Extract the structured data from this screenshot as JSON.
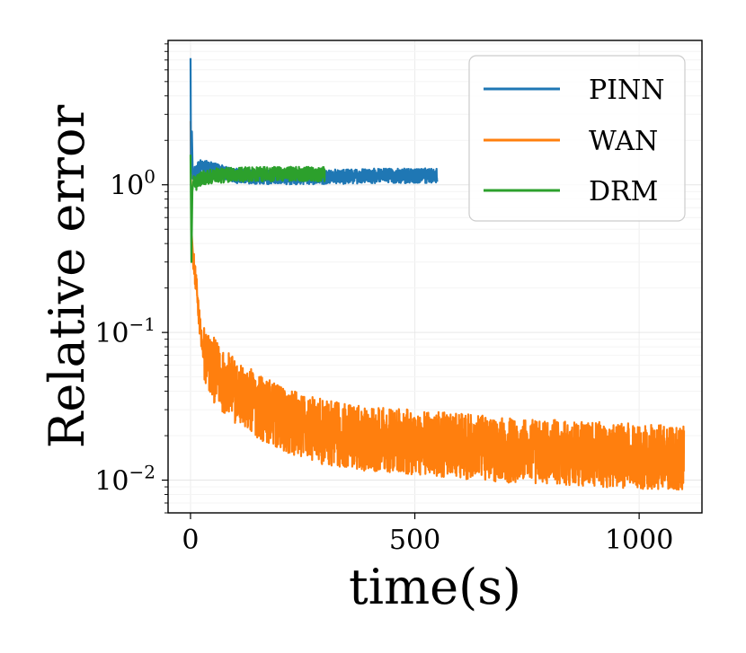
{
  "chart_data": {
    "type": "line",
    "title": "",
    "xlabel": "time(s)",
    "ylabel": "Relative error",
    "xlim": [
      -50,
      1140
    ],
    "ylim": [
      0.006,
      9.5
    ],
    "yscale": "log",
    "grid": true,
    "legend_position": "top-right",
    "x_ticks": [
      0,
      500,
      1000
    ],
    "x_tick_labels": [
      "0",
      "500",
      "1000"
    ],
    "y_ticks": [
      0.01,
      0.1,
      1
    ],
    "y_tick_labels": [
      {
        "base": "10",
        "exp": "−2"
      },
      {
        "base": "10",
        "exp": "−1"
      },
      {
        "base": "10",
        "exp": "0"
      }
    ],
    "series": [
      {
        "name": "PINN",
        "color": "#1f77b4",
        "x_end": 550,
        "anchors": [
          [
            0,
            7.2
          ],
          [
            1,
            1.2
          ],
          [
            3,
            2.3
          ],
          [
            5,
            1.1
          ],
          [
            10,
            1.2
          ],
          [
            20,
            1.3
          ],
          [
            30,
            1.35
          ],
          [
            40,
            1.3
          ],
          [
            60,
            1.25
          ],
          [
            100,
            1.15
          ],
          [
            150,
            1.13
          ],
          [
            200,
            1.13
          ],
          [
            300,
            1.13
          ],
          [
            400,
            1.15
          ],
          [
            550,
            1.15
          ]
        ],
        "noise": 0.05
      },
      {
        "name": "WAN",
        "color": "#ff7f0e",
        "x_end": 1100,
        "anchors": [
          [
            0,
            2.7
          ],
          [
            2,
            0.5
          ],
          [
            5,
            0.35
          ],
          [
            10,
            0.25
          ],
          [
            15,
            0.18
          ],
          [
            20,
            0.12
          ],
          [
            25,
            0.085
          ],
          [
            30,
            0.07
          ],
          [
            40,
            0.062
          ],
          [
            60,
            0.052
          ],
          [
            100,
            0.04
          ],
          [
            150,
            0.032
          ],
          [
            200,
            0.026
          ],
          [
            300,
            0.021
          ],
          [
            400,
            0.019
          ],
          [
            500,
            0.018
          ],
          [
            600,
            0.017
          ],
          [
            700,
            0.016
          ],
          [
            800,
            0.0155
          ],
          [
            900,
            0.015
          ],
          [
            1000,
            0.0145
          ],
          [
            1100,
            0.0142
          ]
        ],
        "noise": 0.22
      },
      {
        "name": "DRM",
        "color": "#2ca02c",
        "x_end": 300,
        "anchors": [
          [
            0,
            1.6
          ],
          [
            2,
            0.3
          ],
          [
            4,
            0.9
          ],
          [
            6,
            1.05
          ],
          [
            10,
            1.0
          ],
          [
            20,
            1.1
          ],
          [
            50,
            1.15
          ],
          [
            100,
            1.17
          ],
          [
            200,
            1.18
          ],
          [
            300,
            1.18
          ]
        ],
        "noise": 0.05
      }
    ]
  }
}
